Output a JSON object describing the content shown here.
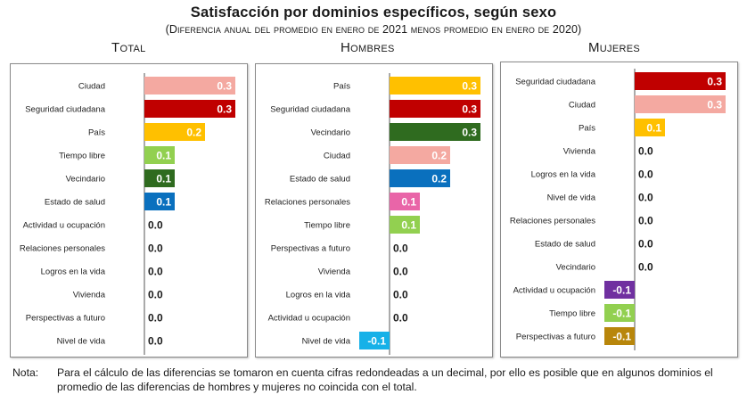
{
  "title": "Satisfacción por dominios específicos, según sexo",
  "subtitle": "(Diferencia anual del promedio en enero de 2021 menos promedio en enero de 2020)",
  "note": {
    "label": "Nota:",
    "text": "Para el cálculo de las diferencias se tomaron en cuenta cifras redondeadas a un decimal, por ello es posible que en algunos dominios el promedio de las diferencias de hombres y mujeres no coincida con el total."
  },
  "chart_data": [
    {
      "type": "bar",
      "orientation": "horizontal",
      "title": "Total",
      "categories": [
        "Ciudad",
        "Seguridad ciudadana",
        "País",
        "Tiempo libre",
        "Vecindario",
        "Estado de salud",
        "Actividad u ocupación",
        "Relaciones personales",
        "Logros en la vida",
        "Vivienda",
        "Perspectivas a futuro",
        "Nivel de vida"
      ],
      "values": [
        0.3,
        0.3,
        0.2,
        0.1,
        0.1,
        0.1,
        0.0,
        0.0,
        0.0,
        0.0,
        0.0,
        0.0
      ],
      "labels": [
        "0.3",
        "0.3",
        "0.2",
        "0.1",
        "0.1",
        "0.1",
        "0.0",
        "0.0",
        "0.0",
        "0.0",
        "0.0",
        "0.0"
      ],
      "colors": [
        "#f4a9a1",
        "#c00000",
        "#ffc000",
        "#92d050",
        "#2f6b1f",
        "#0a70be",
        "#ffffff",
        "#ffffff",
        "#ffffff",
        "#ffffff",
        "#ffffff",
        "#ffffff"
      ],
      "xlim": [
        -0.1,
        0.3
      ]
    },
    {
      "type": "bar",
      "orientation": "horizontal",
      "title": "Hombres",
      "categories": [
        "País",
        "Seguridad ciudadana",
        "Vecindario",
        "Ciudad",
        "Estado de salud",
        "Relaciones personales",
        "Tiempo libre",
        "Perspectivas a futuro",
        "Vivienda",
        "Logros en la vida",
        "Actividad u ocupación",
        "Nivel de vida"
      ],
      "values": [
        0.3,
        0.3,
        0.3,
        0.2,
        0.2,
        0.1,
        0.1,
        0.0,
        0.0,
        0.0,
        0.0,
        -0.1
      ],
      "labels": [
        "0.3",
        "0.3",
        "0.3",
        "0.2",
        "0.2",
        "0.1",
        "0.1",
        "0.0",
        "0.0",
        "0.0",
        "0.0",
        "-0.1"
      ],
      "colors": [
        "#ffc000",
        "#c00000",
        "#2f6b1f",
        "#f4a9a1",
        "#0a70be",
        "#e965a8",
        "#92d050",
        "#ffffff",
        "#ffffff",
        "#ffffff",
        "#ffffff",
        "#16b1e8"
      ],
      "xlim": [
        -0.1,
        0.3
      ]
    },
    {
      "type": "bar",
      "orientation": "horizontal",
      "title": "Mujeres",
      "categories": [
        "Seguridad ciudadana",
        "Ciudad",
        "País",
        "Vivienda",
        "Logros en la vida",
        "Nivel de vida",
        "Relaciones personales",
        "Estado de salud",
        "Vecindario",
        "Actividad u ocupación",
        "Tiempo libre",
        "Perspectivas a futuro"
      ],
      "values": [
        0.3,
        0.3,
        0.1,
        0.0,
        0.0,
        0.0,
        0.0,
        0.0,
        0.0,
        -0.1,
        -0.1,
        -0.1
      ],
      "labels": [
        "0.3",
        "0.3",
        "0.1",
        "0.0",
        "0.0",
        "0.0",
        "0.0",
        "0.0",
        "0.0",
        "-0.1",
        "-0.1",
        "-0.1"
      ],
      "colors": [
        "#c00000",
        "#f4a9a1",
        "#ffc000",
        "#ffffff",
        "#ffffff",
        "#ffffff",
        "#ffffff",
        "#ffffff",
        "#ffffff",
        "#7030a0",
        "#92d050",
        "#b8860b"
      ],
      "xlim": [
        -0.1,
        0.3
      ]
    }
  ]
}
